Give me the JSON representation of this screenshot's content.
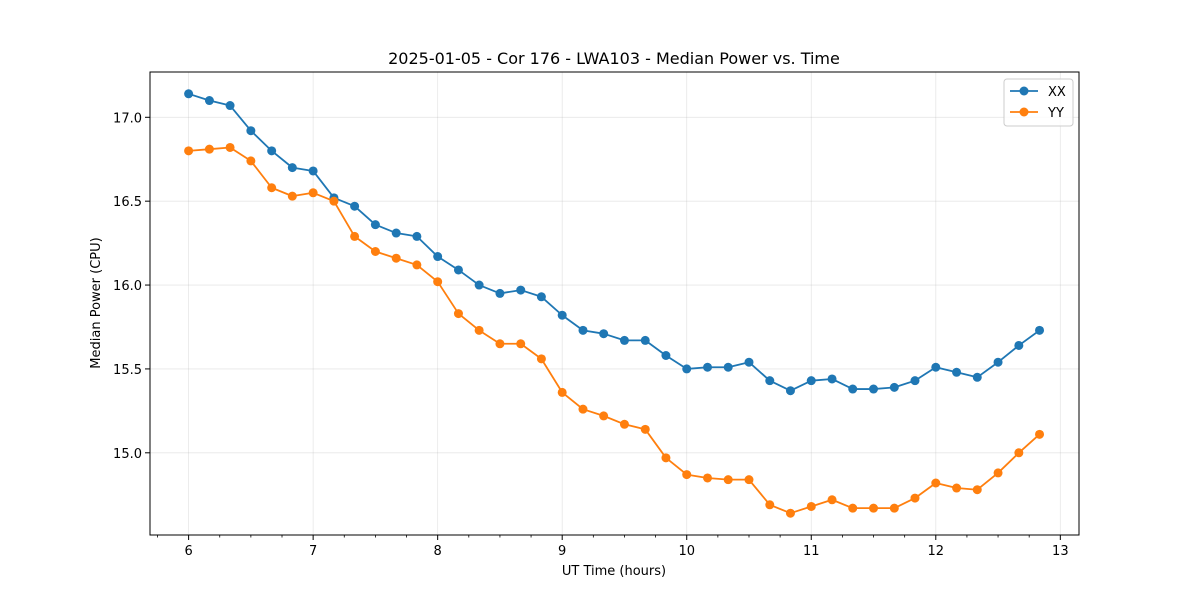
{
  "chart_data": {
    "type": "line",
    "title": "2025-01-05 - Cor 176 - LWA103 - Median Power vs. Time",
    "xlabel": "UT Time (hours)",
    "ylabel": "Median Power (CPU)",
    "xlim": [
      5.69,
      13.15
    ],
    "ylim": [
      14.51,
      17.27
    ],
    "xticks": [
      6,
      7,
      8,
      9,
      10,
      11,
      12,
      13
    ],
    "xtick_labels": [
      "6",
      "7",
      "8",
      "9",
      "10",
      "11",
      "12",
      "13"
    ],
    "yticks": [
      15.0,
      15.5,
      16.0,
      16.5,
      17.0
    ],
    "ytick_labels": [
      "15.0",
      "15.5",
      "16.0",
      "16.5",
      "17.0"
    ],
    "grid": true,
    "legend_position": "top-right",
    "x": [
      6.0,
      6.167,
      6.333,
      6.5,
      6.667,
      6.833,
      7.0,
      7.167,
      7.333,
      7.5,
      7.667,
      7.833,
      8.0,
      8.167,
      8.333,
      8.5,
      8.667,
      8.833,
      9.0,
      9.167,
      9.333,
      9.5,
      9.667,
      9.833,
      10.0,
      10.167,
      10.333,
      10.5,
      10.667,
      10.833,
      11.0,
      11.167,
      11.333,
      11.5,
      11.667,
      11.833,
      12.0,
      12.167,
      12.333,
      12.5,
      12.667,
      12.833
    ],
    "series": [
      {
        "name": "XX",
        "color": "#1f77b4",
        "values": [
          17.14,
          17.1,
          17.07,
          16.92,
          16.8,
          16.7,
          16.68,
          16.52,
          16.47,
          16.36,
          16.31,
          16.29,
          16.17,
          16.09,
          16.0,
          15.95,
          15.97,
          15.93,
          15.82,
          15.73,
          15.71,
          15.67,
          15.67,
          15.58,
          15.5,
          15.51,
          15.51,
          15.54,
          15.43,
          15.37,
          15.43,
          15.44,
          15.38,
          15.38,
          15.39,
          15.43,
          15.51,
          15.48,
          15.45,
          15.54,
          15.64,
          15.73
        ]
      },
      {
        "name": "YY",
        "color": "#ff7f0e",
        "values": [
          16.8,
          16.81,
          16.82,
          16.74,
          16.58,
          16.53,
          16.55,
          16.5,
          16.29,
          16.2,
          16.16,
          16.12,
          16.02,
          15.83,
          15.73,
          15.65,
          15.65,
          15.56,
          15.36,
          15.26,
          15.22,
          15.17,
          15.14,
          14.97,
          14.87,
          14.85,
          14.84,
          14.84,
          14.69,
          14.64,
          14.68,
          14.72,
          14.67,
          14.67,
          14.67,
          14.73,
          14.82,
          14.79,
          14.78,
          14.88,
          15.0,
          15.11
        ]
      }
    ]
  }
}
